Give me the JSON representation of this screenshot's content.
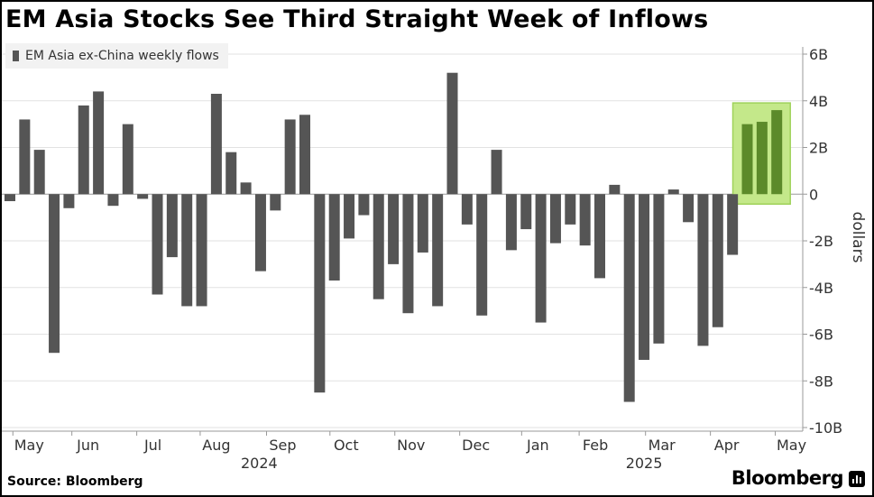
{
  "header": {
    "title": "EM Asia Stocks See Third Straight Week of Inflows"
  },
  "legend": {
    "label": "EM Asia ex-China weekly flows",
    "swatch_color": "#555555"
  },
  "footer": {
    "source": "Source: Bloomberg",
    "brand": "Bloomberg"
  },
  "colors": {
    "bar": "#555555",
    "highlight_bar": "#5c8a2a",
    "highlight_box_fill": "#c4e88a",
    "highlight_box_stroke": "#9fd25a",
    "grid": "#e2e2e2",
    "zero_line": "#9a9a9a"
  },
  "chart_data": {
    "type": "bar",
    "title": "EM Asia Stocks See Third Straight Week of Inflows",
    "ylabel": "dollars",
    "ylim": [
      -10,
      6
    ],
    "y_axis_position": "right",
    "y_ticks": [
      {
        "value": 6,
        "label": "6B"
      },
      {
        "value": 4,
        "label": "4B"
      },
      {
        "value": 2,
        "label": "2B"
      },
      {
        "value": 0,
        "label": "0"
      },
      {
        "value": -2,
        "label": "-2B"
      },
      {
        "value": -4,
        "label": "-4B"
      },
      {
        "value": -6,
        "label": "-6B"
      },
      {
        "value": -8,
        "label": "-8B"
      },
      {
        "value": -10,
        "label": "-10B"
      }
    ],
    "grid": true,
    "legend_placement": "top-left",
    "x_month_labels": [
      {
        "label": "May",
        "week_index": 1.3
      },
      {
        "label": "Jun",
        "week_index": 5.3
      },
      {
        "label": "Jul",
        "week_index": 9.7
      },
      {
        "label": "Aug",
        "week_index": 14.0
      },
      {
        "label": "Sep",
        "week_index": 18.5
      },
      {
        "label": "Oct",
        "week_index": 22.8
      },
      {
        "label": "Nov",
        "week_index": 27.2
      },
      {
        "label": "Dec",
        "week_index": 31.6
      },
      {
        "label": "Jan",
        "week_index": 35.8
      },
      {
        "label": "Feb",
        "week_index": 39.7
      },
      {
        "label": "Mar",
        "week_index": 44.2
      },
      {
        "label": "Apr",
        "week_index": 48.6
      },
      {
        "label": "May",
        "week_index": 53.0
      }
    ],
    "x_year_labels": [
      {
        "label": "2024",
        "week_index": 16.9
      },
      {
        "label": "2025",
        "week_index": 43.0
      }
    ],
    "series": [
      {
        "name": "EM Asia ex-China weekly flows",
        "values": [
          -0.3,
          3.2,
          1.9,
          -6.8,
          -0.6,
          3.8,
          4.4,
          -0.5,
          3.0,
          -0.2,
          -4.3,
          -2.7,
          -4.8,
          -4.8,
          4.3,
          1.8,
          0.5,
          -3.3,
          -0.7,
          3.2,
          3.4,
          -8.5,
          -3.7,
          -1.9,
          -0.9,
          -4.5,
          -3.0,
          -5.1,
          -2.5,
          -4.8,
          5.2,
          -1.3,
          -5.2,
          1.9,
          -2.4,
          -1.5,
          -5.5,
          -2.1,
          -1.3,
          -2.2,
          -3.6,
          0.4,
          -8.9,
          -7.1,
          -6.4,
          0.2,
          -1.2,
          -6.5,
          -5.7,
          -2.6,
          3.0,
          3.1,
          3.6
        ]
      }
    ],
    "highlighted_weeks": [
      50,
      51,
      52
    ]
  }
}
